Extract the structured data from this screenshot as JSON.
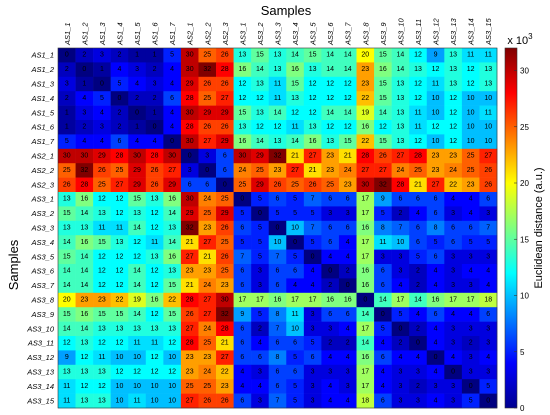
{
  "chart_data": {
    "type": "heatmap",
    "xlabel": "Samples",
    "ylabel": "Samples",
    "labels": [
      "AS1_1",
      "AS1_2",
      "AS1_3",
      "AS1_4",
      "AS1_5",
      "AS1_6",
      "AS1_7",
      "AS2_1",
      "AS2_2",
      "AS2_3",
      "AS3_1",
      "AS3_2",
      "AS3_3",
      "AS3_4",
      "AS3_5",
      "AS3_6",
      "AS3_7",
      "AS3_8",
      "AS3_9",
      "AS3_10",
      "AS3_11",
      "AS3_12",
      "AS3_13",
      "AS3_14",
      "AS3_15"
    ],
    "colorbar": {
      "label": "Euclidean distance (a.u.)",
      "multiplier": "x 10",
      "multiplier_exp": "3",
      "range": [
        0,
        32
      ],
      "ticks": [
        "0",
        "5",
        "10",
        "15",
        "20",
        "25",
        "30"
      ]
    },
    "matrix": [
      [
        0,
        2,
        3,
        2,
        1,
        1,
        5,
        30,
        25,
        26,
        13,
        15,
        13,
        14,
        15,
        14,
        14,
        20,
        15,
        14,
        12,
        9,
        13,
        11,
        11
      ],
      [
        2,
        0,
        1,
        4,
        3,
        2,
        4,
        30,
        32,
        28,
        16,
        14,
        13,
        16,
        13,
        14,
        14,
        23,
        16,
        14,
        13,
        12,
        13,
        12,
        13
      ],
      [
        3,
        1,
        0,
        5,
        4,
        3,
        4,
        29,
        26,
        26,
        12,
        13,
        11,
        15,
        12,
        12,
        12,
        23,
        15,
        13,
        12,
        11,
        13,
        12,
        13
      ],
      [
        2,
        4,
        5,
        0,
        2,
        2,
        6,
        28,
        25,
        27,
        12,
        12,
        11,
        13,
        12,
        12,
        12,
        22,
        15,
        13,
        12,
        10,
        12,
        10,
        10
      ],
      [
        1,
        3,
        4,
        2,
        0,
        1,
        4,
        30,
        29,
        29,
        15,
        13,
        14,
        12,
        12,
        14,
        14,
        19,
        14,
        13,
        11,
        10,
        12,
        10,
        11
      ],
      [
        1,
        2,
        3,
        2,
        1,
        0,
        4,
        28,
        26,
        26,
        13,
        12,
        12,
        11,
        13,
        12,
        12,
        16,
        12,
        13,
        11,
        12,
        12,
        10,
        10
      ],
      [
        5,
        4,
        4,
        6,
        4,
        4,
        0,
        30,
        27,
        29,
        16,
        14,
        13,
        14,
        16,
        13,
        15,
        22,
        15,
        13,
        12,
        10,
        12,
        10,
        10
      ],
      [
        30,
        30,
        29,
        28,
        30,
        28,
        30,
        0,
        3,
        6,
        30,
        29,
        32,
        21,
        27,
        23,
        21,
        28,
        26,
        27,
        28,
        23,
        23,
        25,
        27
      ],
      [
        25,
        32,
        26,
        25,
        29,
        26,
        27,
        3,
        0,
        6,
        24,
        25,
        23,
        27,
        21,
        23,
        24,
        27,
        27,
        24,
        25,
        23,
        24,
        25,
        26
      ],
      [
        26,
        28,
        25,
        27,
        29,
        26,
        29,
        6,
        6,
        0,
        25,
        29,
        26,
        25,
        26,
        25,
        23,
        30,
        32,
        28,
        21,
        27,
        22,
        23,
        26
      ],
      [
        13,
        16,
        12,
        12,
        15,
        13,
        16,
        30,
        24,
        25,
        0,
        5,
        6,
        5,
        7,
        6,
        6,
        17,
        9,
        6,
        6,
        6,
        4,
        4,
        6
      ],
      [
        15,
        14,
        13,
        12,
        13,
        12,
        14,
        29,
        25,
        29,
        5,
        0,
        5,
        5,
        5,
        3,
        3,
        17,
        5,
        2,
        4,
        6,
        3,
        4,
        3
      ],
      [
        13,
        13,
        11,
        11,
        14,
        12,
        13,
        32,
        23,
        26,
        6,
        5,
        0,
        10,
        7,
        6,
        6,
        16,
        8,
        7,
        6,
        8,
        6,
        6,
        7
      ],
      [
        14,
        16,
        15,
        13,
        12,
        11,
        14,
        21,
        27,
        25,
        5,
        5,
        10,
        0,
        5,
        6,
        4,
        17,
        11,
        10,
        6,
        5,
        6,
        5,
        5
      ],
      [
        15,
        14,
        12,
        12,
        12,
        13,
        16,
        27,
        21,
        26,
        7,
        5,
        7,
        5,
        0,
        4,
        4,
        17,
        3,
        3,
        5,
        6,
        3,
        3,
        3
      ],
      [
        14,
        14,
        12,
        12,
        14,
        12,
        13,
        23,
        23,
        25,
        6,
        3,
        6,
        6,
        4,
        0,
        2,
        16,
        6,
        3,
        2,
        4,
        3,
        4,
        4
      ],
      [
        14,
        14,
        12,
        12,
        14,
        12,
        15,
        21,
        24,
        23,
        6,
        3,
        6,
        4,
        4,
        2,
        0,
        16,
        6,
        4,
        2,
        4,
        3,
        3,
        4
      ],
      [
        20,
        23,
        23,
        22,
        19,
        16,
        22,
        28,
        27,
        30,
        17,
        17,
        16,
        17,
        17,
        16,
        16,
        0,
        14,
        17,
        14,
        16,
        17,
        17,
        18
      ],
      [
        15,
        16,
        15,
        15,
        14,
        12,
        15,
        26,
        27,
        32,
        9,
        5,
        8,
        11,
        3,
        6,
        6,
        14,
        0,
        5,
        4,
        6,
        4,
        4,
        6
      ],
      [
        14,
        14,
        13,
        13,
        13,
        13,
        13,
        27,
        24,
        28,
        6,
        2,
        7,
        10,
        3,
        3,
        4,
        17,
        5,
        0,
        2,
        4,
        3,
        3,
        3
      ],
      [
        12,
        13,
        12,
        12,
        11,
        11,
        12,
        28,
        25,
        21,
        6,
        4,
        6,
        6,
        5,
        2,
        2,
        14,
        4,
        2,
        0,
        4,
        3,
        2,
        3
      ],
      [
        9,
        12,
        11,
        10,
        10,
        12,
        10,
        23,
        23,
        27,
        6,
        6,
        8,
        5,
        6,
        4,
        4,
        16,
        6,
        4,
        4,
        0,
        4,
        3,
        4
      ],
      [
        13,
        13,
        13,
        12,
        12,
        12,
        12,
        23,
        24,
        22,
        4,
        3,
        6,
        6,
        3,
        3,
        3,
        17,
        4,
        3,
        3,
        4,
        0,
        3,
        3
      ],
      [
        11,
        12,
        12,
        10,
        10,
        10,
        10,
        25,
        25,
        23,
        4,
        4,
        6,
        5,
        3,
        4,
        3,
        17,
        4,
        3,
        2,
        3,
        3,
        0,
        5
      ],
      [
        11,
        13,
        13,
        10,
        11,
        10,
        10,
        27,
        26,
        26,
        6,
        3,
        7,
        5,
        3,
        4,
        4,
        18,
        6,
        3,
        3,
        4,
        3,
        5,
        0
      ]
    ]
  }
}
